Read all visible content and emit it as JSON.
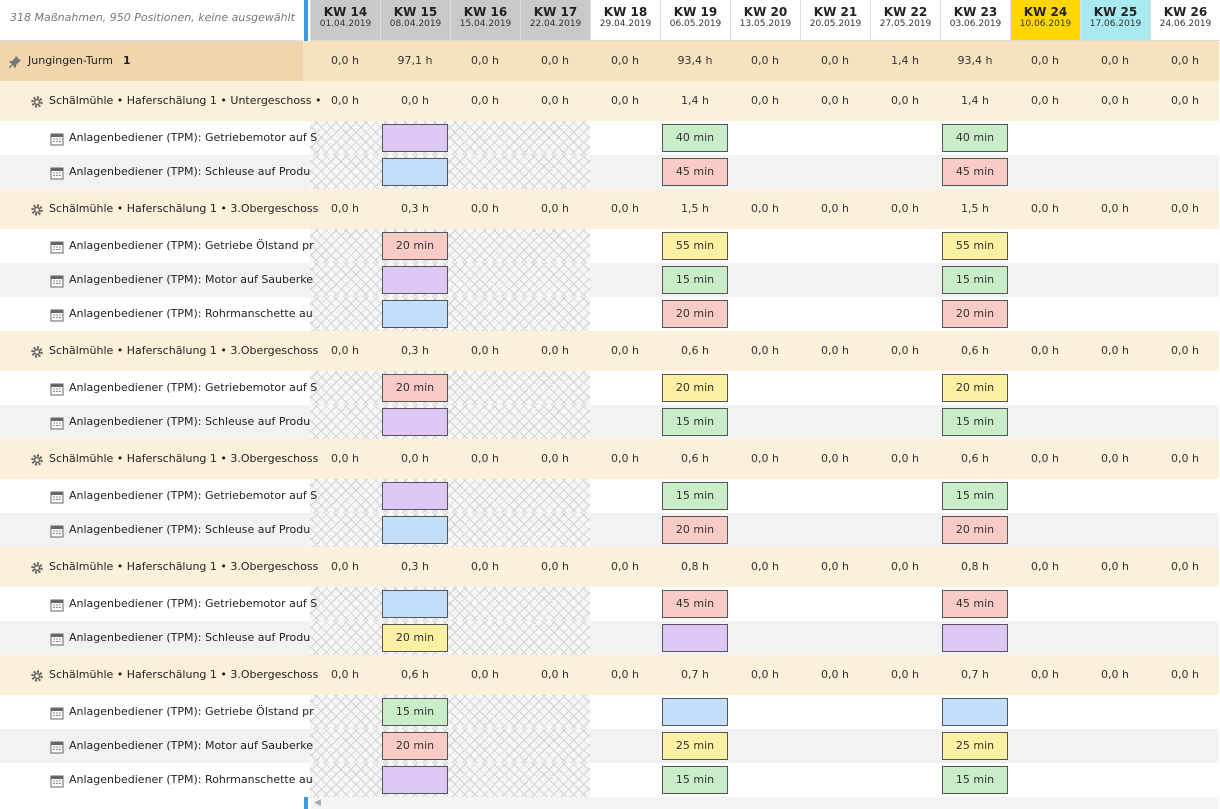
{
  "header": {
    "summary": "318 Maßnahmen, 950 Positionen, keine ausgewählt"
  },
  "weeks": [
    {
      "label": "KW 14",
      "date": "01.04.2019",
      "color": "#c9c9c9"
    },
    {
      "label": "KW 15",
      "date": "08.04.2019",
      "color": "#c9c9c9"
    },
    {
      "label": "KW 16",
      "date": "15.04.2019",
      "color": "#c9c9c9"
    },
    {
      "label": "KW 17",
      "date": "22.04.2019",
      "color": "#c9c9c9"
    },
    {
      "label": "KW 18",
      "date": "29.04.2019",
      "color": "#ffffff"
    },
    {
      "label": "KW 19",
      "date": "06.05.2019",
      "color": "#ffffff"
    },
    {
      "label": "KW 20",
      "date": "13.05.2019",
      "color": "#ffffff"
    },
    {
      "label": "KW 21",
      "date": "20.05.2019",
      "color": "#ffffff"
    },
    {
      "label": "KW 22",
      "date": "27.05.2019",
      "color": "#ffffff"
    },
    {
      "label": "KW 23",
      "date": "03.06.2019",
      "color": "#ffffff"
    },
    {
      "label": "KW 24",
      "date": "10.06.2019",
      "color": "#ffd700"
    },
    {
      "label": "KW 25",
      "date": "17.06.2019",
      "color": "#a9e9f0"
    },
    {
      "label": "KW 26",
      "date": "24.06.2019",
      "color": "#ffffff"
    }
  ],
  "root": {
    "name": "Jungingen-Turm",
    "count": 1,
    "values": [
      "0,0 h",
      "97,1 h",
      "0,0 h",
      "0,0 h",
      "0,0 h",
      "93,4 h",
      "0,0 h",
      "0,0 h",
      "1,4 h",
      "93,4 h",
      "0,0 h",
      "0,0 h",
      "0,0 h"
    ]
  },
  "groups": [
    {
      "name": "Schälmühle • Haferschälung 1 • Untergeschoss •",
      "values": [
        "0,0 h",
        "0,0 h",
        "0,0 h",
        "0,0 h",
        "0,0 h",
        "1,4 h",
        "0,0 h",
        "0,0 h",
        "0,0 h",
        "1,4 h",
        "0,0 h",
        "0,0 h",
        "0,0 h"
      ],
      "items": [
        {
          "name": "Anlagenbediener (TPM): Getriebemotor auf S",
          "cells": [
            null,
            {
              "color": "#dcc8f2"
            },
            null,
            null,
            null,
            {
              "color": "#c9edc9",
              "label": "40 min"
            },
            null,
            null,
            null,
            {
              "color": "#c9edc9",
              "label": "40 min"
            },
            null,
            null,
            null
          ]
        },
        {
          "name": "Anlagenbediener (TPM): Schleuse auf Produ",
          "cells": [
            null,
            {
              "color": "#c3def9"
            },
            null,
            null,
            null,
            {
              "color": "#f9cbc6",
              "label": "45 min"
            },
            null,
            null,
            null,
            {
              "color": "#f9cbc6",
              "label": "45 min"
            },
            null,
            null,
            null
          ]
        }
      ]
    },
    {
      "name": "Schälmühle • Haferschälung 1 • 3.Obergeschoss",
      "values": [
        "0,0 h",
        "0,3 h",
        "0,0 h",
        "0,0 h",
        "0,0 h",
        "1,5 h",
        "0,0 h",
        "0,0 h",
        "0,0 h",
        "1,5 h",
        "0,0 h",
        "0,0 h",
        "0,0 h"
      ],
      "items": [
        {
          "name": "Anlagenbediener (TPM): Getriebe Ölstand pr",
          "cells": [
            null,
            {
              "color": "#f9cbc6",
              "label": "20 min"
            },
            null,
            null,
            null,
            {
              "color": "#fbf0a3",
              "label": "55 min"
            },
            null,
            null,
            null,
            {
              "color": "#fbf0a3",
              "label": "55 min"
            },
            null,
            null,
            null
          ]
        },
        {
          "name": "Anlagenbediener (TPM): Motor auf Sauberke",
          "cells": [
            null,
            {
              "color": "#dcc8f2"
            },
            null,
            null,
            null,
            {
              "color": "#c9edc9",
              "label": "15 min"
            },
            null,
            null,
            null,
            {
              "color": "#c9edc9",
              "label": "15 min"
            },
            null,
            null,
            null
          ]
        },
        {
          "name": "Anlagenbediener (TPM): Rohrmanschette au",
          "cells": [
            null,
            {
              "color": "#c3def9"
            },
            null,
            null,
            null,
            {
              "color": "#f9cbc6",
              "label": "20 min"
            },
            null,
            null,
            null,
            {
              "color": "#f9cbc6",
              "label": "20 min"
            },
            null,
            null,
            null
          ]
        }
      ]
    },
    {
      "name": "Schälmühle • Haferschälung 1 • 3.Obergeschoss",
      "values": [
        "0,0 h",
        "0,3 h",
        "0,0 h",
        "0,0 h",
        "0,0 h",
        "0,6 h",
        "0,0 h",
        "0,0 h",
        "0,0 h",
        "0,6 h",
        "0,0 h",
        "0,0 h",
        "0,0 h"
      ],
      "items": [
        {
          "name": "Anlagenbediener (TPM): Getriebemotor auf S",
          "cells": [
            null,
            {
              "color": "#f9cbc6",
              "label": "20 min"
            },
            null,
            null,
            null,
            {
              "color": "#fbf0a3",
              "label": "20 min"
            },
            null,
            null,
            null,
            {
              "color": "#fbf0a3",
              "label": "20 min"
            },
            null,
            null,
            null
          ]
        },
        {
          "name": "Anlagenbediener (TPM): Schleuse auf Produ",
          "cells": [
            null,
            {
              "color": "#dcc8f2"
            },
            null,
            null,
            null,
            {
              "color": "#c9edc9",
              "label": "15 min"
            },
            null,
            null,
            null,
            {
              "color": "#c9edc9",
              "label": "15 min"
            },
            null,
            null,
            null
          ]
        }
      ]
    },
    {
      "name": "Schälmühle • Haferschälung 1 • 3.Obergeschoss",
      "values": [
        "0,0 h",
        "0,0 h",
        "0,0 h",
        "0,0 h",
        "0,0 h",
        "0,6 h",
        "0,0 h",
        "0,0 h",
        "0,0 h",
        "0,6 h",
        "0,0 h",
        "0,0 h",
        "0,0 h"
      ],
      "items": [
        {
          "name": "Anlagenbediener (TPM): Getriebemotor auf S",
          "cells": [
            null,
            {
              "color": "#dcc8f2"
            },
            null,
            null,
            null,
            {
              "color": "#c9edc9",
              "label": "15 min"
            },
            null,
            null,
            null,
            {
              "color": "#c9edc9",
              "label": "15 min"
            },
            null,
            null,
            null
          ]
        },
        {
          "name": "Anlagenbediener (TPM): Schleuse auf Produ",
          "cells": [
            null,
            {
              "color": "#c3def9"
            },
            null,
            null,
            null,
            {
              "color": "#f9cbc6",
              "label": "20 min"
            },
            null,
            null,
            null,
            {
              "color": "#f9cbc6",
              "label": "20 min"
            },
            null,
            null,
            null
          ]
        }
      ]
    },
    {
      "name": "Schälmühle • Haferschälung 1 • 3.Obergeschoss",
      "values": [
        "0,0 h",
        "0,3 h",
        "0,0 h",
        "0,0 h",
        "0,0 h",
        "0,8 h",
        "0,0 h",
        "0,0 h",
        "0,0 h",
        "0,8 h",
        "0,0 h",
        "0,0 h",
        "0,0 h"
      ],
      "items": [
        {
          "name": "Anlagenbediener (TPM): Getriebemotor auf S",
          "cells": [
            null,
            {
              "color": "#c3def9"
            },
            null,
            null,
            null,
            {
              "color": "#f9cbc6",
              "label": "45 min"
            },
            null,
            null,
            null,
            {
              "color": "#f9cbc6",
              "label": "45 min"
            },
            null,
            null,
            null
          ]
        },
        {
          "name": "Anlagenbediener (TPM): Schleuse auf Produ",
          "cells": [
            null,
            {
              "color": "#fbf0a3",
              "label": "20 min"
            },
            null,
            null,
            null,
            {
              "color": "#dcc8f2"
            },
            null,
            null,
            null,
            {
              "color": "#dcc8f2"
            },
            null,
            null,
            null
          ]
        }
      ]
    },
    {
      "name": "Schälmühle • Haferschälung 1 • 3.Obergeschoss",
      "values": [
        "0,0 h",
        "0,6 h",
        "0,0 h",
        "0,0 h",
        "0,0 h",
        "0,7 h",
        "0,0 h",
        "0,0 h",
        "0,0 h",
        "0,7 h",
        "0,0 h",
        "0,0 h",
        "0,0 h"
      ],
      "items": [
        {
          "name": "Anlagenbediener (TPM): Getriebe Ölstand pr",
          "cells": [
            null,
            {
              "color": "#c9edc9",
              "label": "15 min"
            },
            null,
            null,
            null,
            {
              "color": "#c3def9"
            },
            null,
            null,
            null,
            {
              "color": "#c3def9"
            },
            null,
            null,
            null
          ]
        },
        {
          "name": "Anlagenbediener (TPM): Motor auf Sauberke",
          "cells": [
            null,
            {
              "color": "#f9cbc6",
              "label": "20 min"
            },
            null,
            null,
            null,
            {
              "color": "#fbf0a3",
              "label": "25 min"
            },
            null,
            null,
            null,
            {
              "color": "#fbf0a3",
              "label": "25 min"
            },
            null,
            null,
            null
          ]
        },
        {
          "name": "Anlagenbediener (TPM): Rohrmanschette au",
          "cells": [
            null,
            {
              "color": "#dcc8f2"
            },
            null,
            null,
            null,
            {
              "color": "#c9edc9",
              "label": "15 min"
            },
            null,
            null,
            null,
            {
              "color": "#c9edc9",
              "label": "15 min"
            },
            null,
            null,
            null
          ]
        }
      ]
    }
  ]
}
